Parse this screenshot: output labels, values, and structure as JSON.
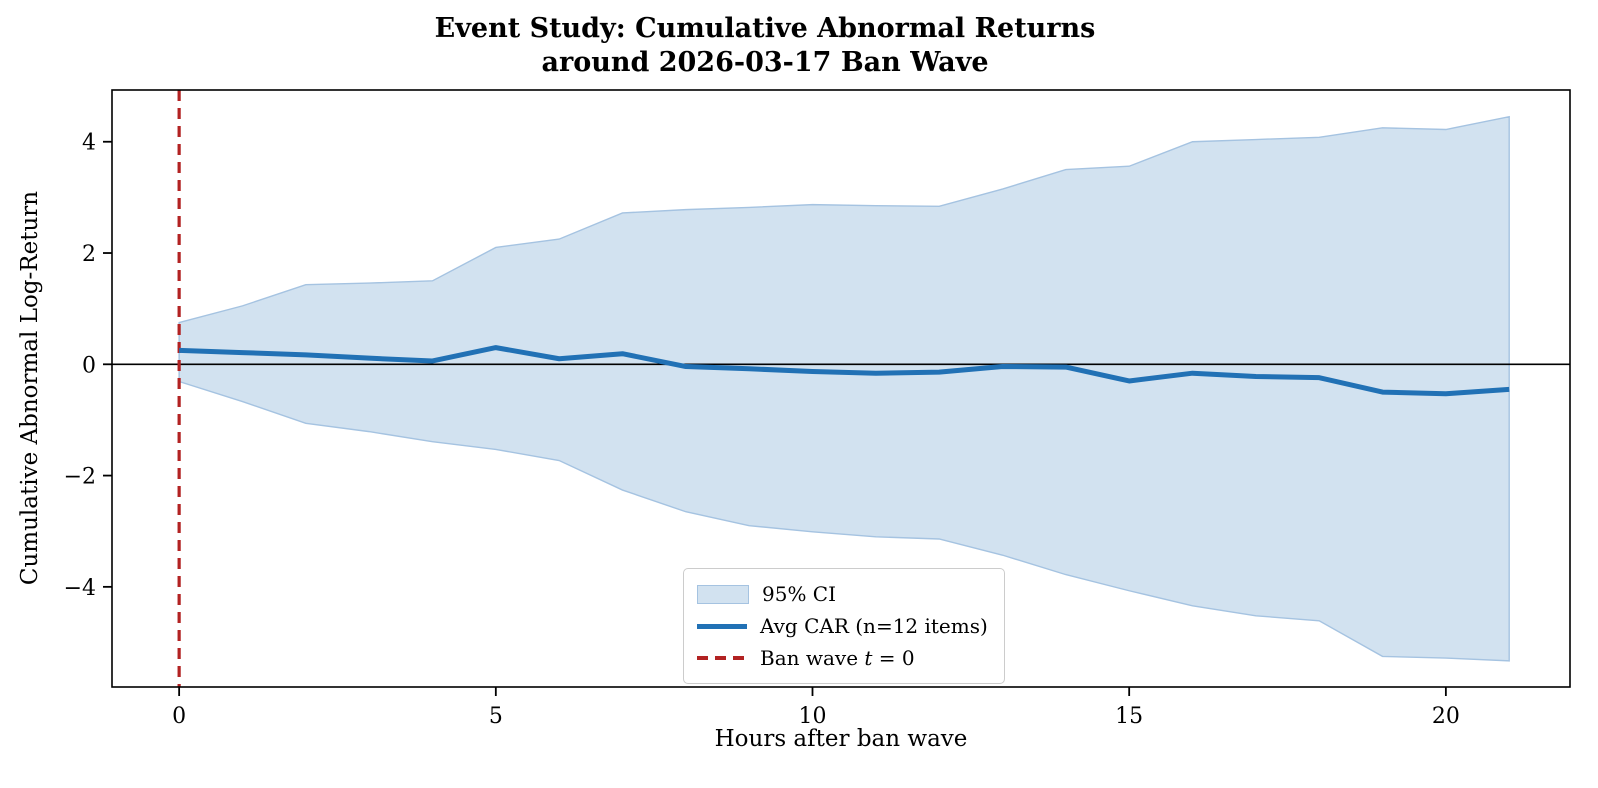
{
  "title": {
    "line1": "Event Study: Cumulative Abnormal Returns",
    "line2": "around 2026-03-17 Ban Wave"
  },
  "axes": {
    "xlabel": "Hours after ban wave",
    "ylabel": "Cumulative Abnormal Log-Return"
  },
  "colors": {
    "car_line": "#2171b5",
    "ci_fill": "#d2e2f0",
    "ci_edge": "#a5c3e1",
    "ban_line": "#b22222",
    "zero_line": "#000000",
    "spine": "#000000",
    "legend_border": "#cccccc"
  },
  "legend": {
    "items": [
      {
        "swatch": "patch",
        "parts": [
          {
            "text": "95% CI",
            "italic": false
          }
        ]
      },
      {
        "swatch": "line",
        "parts": [
          {
            "text": "Avg CAR (n=12 items)",
            "italic": false
          }
        ]
      },
      {
        "swatch": "dash",
        "parts": [
          {
            "text": "Ban wave ",
            "italic": false
          },
          {
            "text": "t",
            "italic": true
          },
          {
            "text": " = 0",
            "italic": false
          }
        ]
      }
    ]
  },
  "chart_data": {
    "type": "line",
    "title": "Event Study: Cumulative Abnormal Returns around 2026-03-17 Ban Wave",
    "xlabel": "Hours after ban wave",
    "ylabel": "Cumulative Abnormal Log-Return",
    "x": [
      0,
      1,
      2,
      3,
      4,
      5,
      6,
      7,
      8,
      9,
      10,
      11,
      12,
      13,
      14,
      15,
      16,
      17,
      18,
      19,
      20,
      21
    ],
    "series": [
      {
        "name": "Avg CAR (n=12 items)",
        "role": "car",
        "values": [
          0.25,
          0.21,
          0.17,
          0.11,
          0.06,
          0.3,
          0.1,
          0.19,
          -0.04,
          -0.08,
          -0.13,
          -0.16,
          -0.14,
          -0.04,
          -0.05,
          -0.3,
          -0.16,
          -0.22,
          -0.24,
          -0.5,
          -0.53,
          -0.45
        ]
      },
      {
        "name": "95% CI upper",
        "role": "ci_upper",
        "values": [
          0.75,
          1.05,
          1.43,
          1.46,
          1.5,
          2.1,
          2.25,
          2.72,
          2.78,
          2.82,
          2.87,
          2.85,
          2.84,
          3.15,
          3.5,
          3.56,
          4.0,
          4.04,
          4.08,
          4.25,
          4.22,
          4.45
        ]
      },
      {
        "name": "95% CI lower",
        "role": "ci_lower",
        "values": [
          -0.31,
          -0.67,
          -1.06,
          -1.21,
          -1.39,
          -1.53,
          -1.73,
          -2.26,
          -2.65,
          -2.9,
          -3.01,
          -3.1,
          -3.14,
          -3.43,
          -3.78,
          -4.07,
          -4.34,
          -4.52,
          -4.61,
          -5.25,
          -5.28,
          -5.33
        ]
      }
    ],
    "event_vline_x": 0,
    "xlim": [
      -1.06,
      21.96
    ],
    "ylim": [
      -5.8,
      4.93
    ],
    "xticks": [
      0,
      5,
      10,
      15,
      20
    ],
    "yticks": [
      -4,
      -2,
      0,
      2,
      4
    ],
    "grid": false,
    "legend_position": "lower center"
  }
}
